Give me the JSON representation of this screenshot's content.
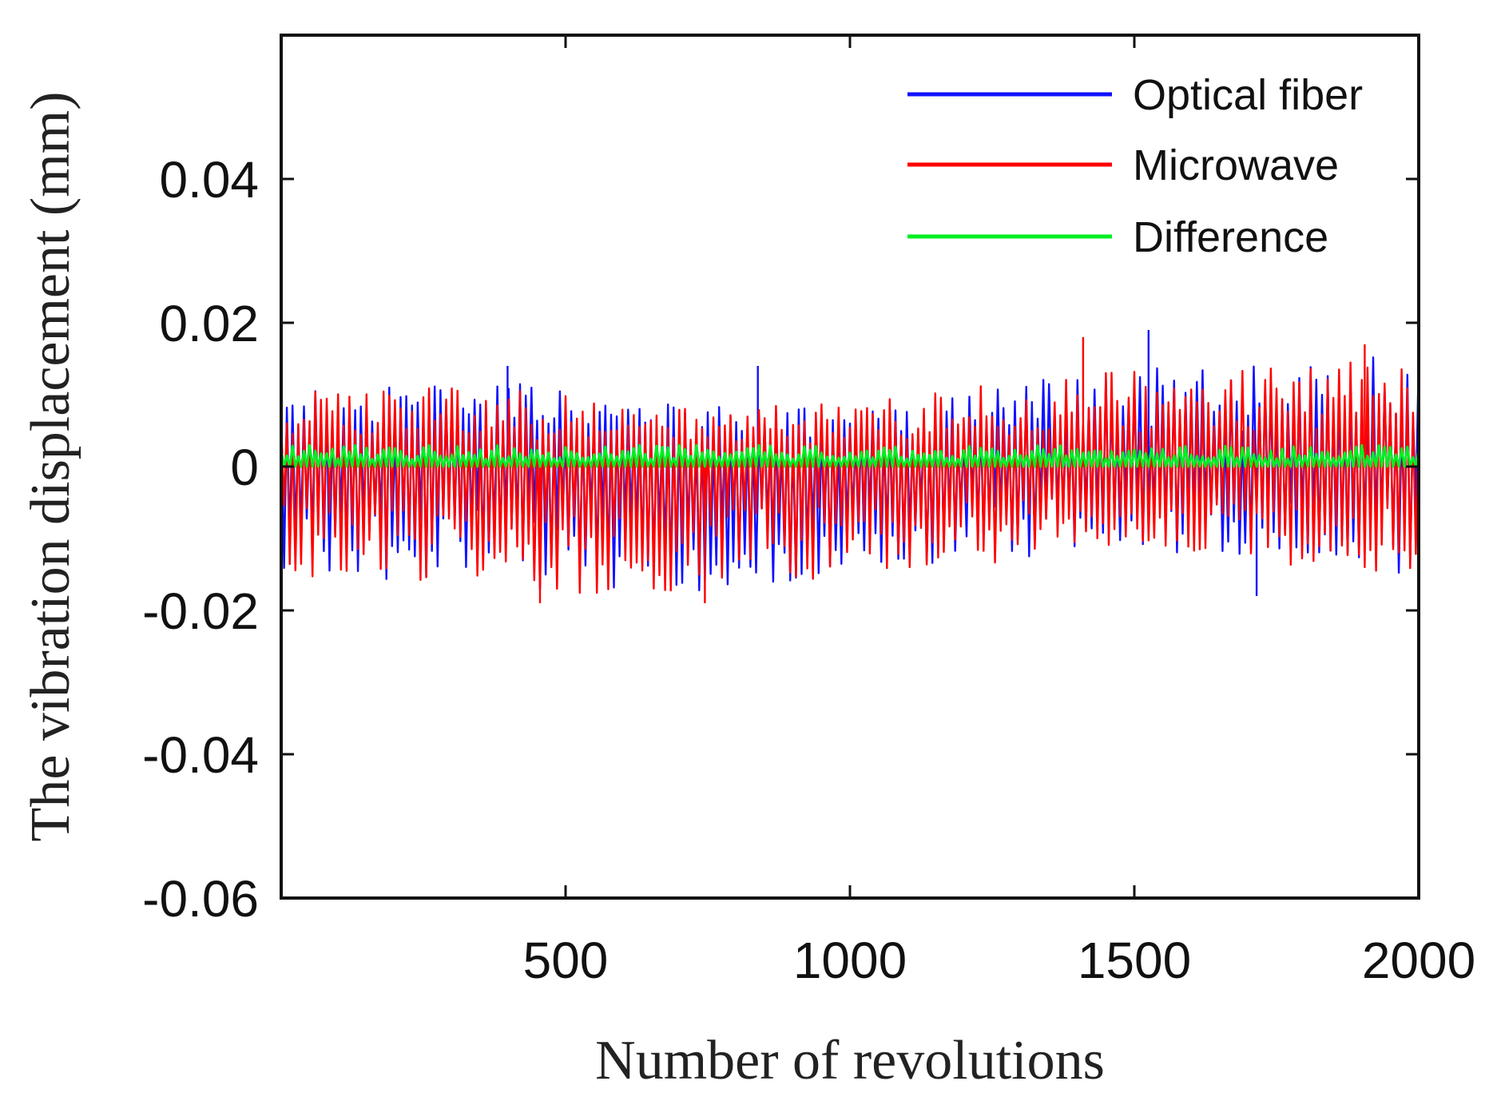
{
  "chart_data": {
    "type": "line",
    "title": "",
    "xlabel": "Number of revolutions",
    "ylabel": "The vibration displacement (mm)",
    "xlim": [
      0,
      2000
    ],
    "ylim": [
      -0.06,
      0.06
    ],
    "x_ticks": [
      500,
      1000,
      1500,
      2000
    ],
    "x_tick_labels": [
      "500",
      "1000",
      "1500",
      "2000"
    ],
    "y_ticks": [
      -0.06,
      -0.04,
      -0.02,
      0,
      0.02,
      0.04
    ],
    "y_tick_labels": [
      "-0.06",
      "-0.04",
      "-0.02",
      "0",
      "0.02",
      "0.04"
    ],
    "legend_position": "top-right",
    "grid": false,
    "x_step": 5,
    "series": [
      {
        "name": "Optical fiber",
        "color": "#1010ff",
        "envelope": {
          "x": [
            0,
            200,
            400,
            600,
            800,
            1000,
            1200,
            1400,
            1600,
            1800,
            2000
          ],
          "upper": [
            0.011,
            0.011,
            0.012,
            0.009,
            0.009,
            0.008,
            0.01,
            0.013,
            0.014,
            0.014,
            0.016
          ],
          "lower": [
            -0.015,
            -0.016,
            -0.017,
            -0.018,
            -0.017,
            -0.015,
            -0.014,
            -0.012,
            -0.012,
            -0.014,
            -0.015
          ]
        },
        "peaks": [
          [
            398,
            0.014
          ],
          [
            838,
            0.014
          ],
          [
            1525,
            0.019
          ],
          [
            1715,
            -0.018
          ]
        ]
      },
      {
        "name": "Microwave",
        "color": "#ff0000",
        "envelope": {
          "x": [
            0,
            200,
            400,
            600,
            800,
            1000,
            1200,
            1400,
            1600,
            1800,
            2000
          ],
          "upper": [
            0.011,
            0.011,
            0.011,
            0.009,
            0.009,
            0.009,
            0.011,
            0.013,
            0.014,
            0.014,
            0.016
          ],
          "lower": [
            -0.015,
            -0.016,
            -0.018,
            -0.018,
            -0.017,
            -0.015,
            -0.014,
            -0.012,
            -0.012,
            -0.014,
            -0.015
          ]
        },
        "peaks": [
          [
            455,
            -0.019
          ],
          [
            745,
            -0.019
          ],
          [
            1410,
            0.018
          ],
          [
            1905,
            0.017
          ]
        ]
      },
      {
        "name": "Difference",
        "color": "#00ee22",
        "envelope": {
          "x": [
            0,
            2000
          ],
          "upper": [
            0.003,
            0.003
          ],
          "lower": [
            0.0,
            0.0
          ]
        },
        "peaks": []
      }
    ]
  }
}
